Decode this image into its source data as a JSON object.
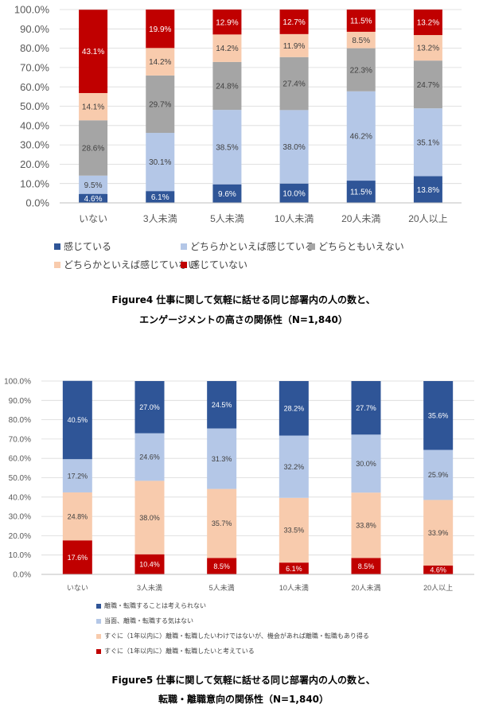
{
  "chart_data": [
    {
      "type": "bar",
      "stacked": true,
      "caption_line1": "Figure4  仕事に関して気軽に話せる同じ部署内の人の数と、",
      "caption_line2": "エンゲージメントの高さの関係性（N=1,840）",
      "categories": [
        "いない",
        "3人未満",
        "5人未満",
        "10人未満",
        "20人未満",
        "20人以上"
      ],
      "yticks": [
        "0.0%",
        "10.0%",
        "20.0%",
        "30.0%",
        "40.0%",
        "50.0%",
        "60.0%",
        "70.0%",
        "80.0%",
        "90.0%",
        "100.0%"
      ],
      "ylim": [
        0,
        100
      ],
      "series": [
        {
          "name": "感じている",
          "color": "#2f5597",
          "values": [
            4.6,
            6.1,
            9.6,
            10.0,
            11.5,
            13.8
          ],
          "labels": [
            "4.6%",
            "6.1%",
            "9.6%",
            "10.0%",
            "11.5%",
            "13.8%"
          ]
        },
        {
          "name": "どちらかといえば感じている",
          "color": "#b4c7e7",
          "values": [
            9.5,
            30.1,
            38.5,
            38.0,
            46.2,
            35.1
          ],
          "labels": [
            "9.5%",
            "30.1%",
            "38.5%",
            "38.0%",
            "46.2%",
            "35.1%"
          ]
        },
        {
          "name": "どちらともいえない",
          "color": "#a5a5a5",
          "values": [
            28.6,
            29.7,
            24.8,
            27.4,
            22.3,
            24.7
          ],
          "labels": [
            "28.6%",
            "29.7%",
            "24.8%",
            "27.4%",
            "22.3%",
            "24.7%"
          ]
        },
        {
          "name": "どちらかといえば感じていない",
          "color": "#f8cbad",
          "values": [
            14.1,
            14.2,
            14.2,
            11.9,
            8.5,
            13.2
          ],
          "labels": [
            "14.1%",
            "14.2%",
            "14.2%",
            "11.9%",
            "8.5%",
            "13.2%"
          ]
        },
        {
          "name": "感じていない",
          "color": "#c00000",
          "values": [
            43.1,
            19.9,
            12.9,
            12.7,
            11.5,
            13.2
          ],
          "labels": [
            "43.1%",
            "19.9%",
            "12.9%",
            "12.7%",
            "11.5%",
            "13.2%"
          ]
        }
      ]
    },
    {
      "type": "bar",
      "stacked": true,
      "caption_line1": "Figure5  仕事に関して気軽に話せる同じ部署内の人の数と、",
      "caption_line2": "転職・離職意向の関係性（N=1,840）",
      "categories": [
        "いない",
        "3人未満",
        "5人未満",
        "10人未満",
        "20人未満",
        "20人以上"
      ],
      "yticks": [
        "0.0%",
        "10.0%",
        "20.0%",
        "30.0%",
        "40.0%",
        "50.0%",
        "60.0%",
        "70.0%",
        "80.0%",
        "90.0%",
        "100.0%"
      ],
      "ylim": [
        0,
        100
      ],
      "series": [
        {
          "name": "すぐに（1年以内に）離職・転職したいと考えている",
          "color": "#c00000",
          "values": [
            17.6,
            10.4,
            8.5,
            6.1,
            8.5,
            4.6
          ],
          "labels": [
            "17.6%",
            "10.4%",
            "8.5%",
            "6.1%",
            "8.5%",
            "4.6%"
          ]
        },
        {
          "name": "すぐに（1年以内に）離職・転職したいわけではないが、機会があれば離職・転職もあり得る",
          "color": "#f8cbad",
          "values": [
            24.8,
            38.0,
            35.7,
            33.5,
            33.8,
            33.9
          ],
          "labels": [
            "24.8%",
            "38.0%",
            "35.7%",
            "33.5%",
            "33.8%",
            "33.9%"
          ]
        },
        {
          "name": "当面、離職・転職する気はない",
          "color": "#b4c7e7",
          "values": [
            17.2,
            24.6,
            31.3,
            32.2,
            30.0,
            25.9
          ],
          "labels": [
            "17.2%",
            "24.6%",
            "31.3%",
            "32.2%",
            "30.0%",
            "25.9%"
          ]
        },
        {
          "name": "離職・転職することは考えられない",
          "color": "#2f5597",
          "values": [
            40.5,
            27.0,
            24.5,
            28.2,
            27.7,
            35.6
          ],
          "labels": [
            "40.5%",
            "27.0%",
            "24.5%",
            "28.2%",
            "27.7%",
            "35.6%"
          ]
        }
      ],
      "legend_order": [
        3,
        2,
        1,
        0
      ]
    }
  ]
}
